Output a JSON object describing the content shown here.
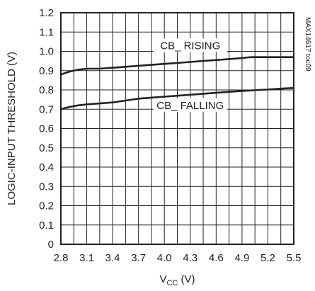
{
  "chart_data": {
    "type": "line",
    "title": "",
    "xlabel_main": "V",
    "xlabel_sub": "CC",
    "xlabel_unit": " (V)",
    "ylabel": "LOGIC-INPUT THRESHOLD (V)",
    "xlim": [
      2.8,
      5.5
    ],
    "ylim": [
      0,
      1.2
    ],
    "x_ticks": [
      "2.8",
      "3.1",
      "3.4",
      "3.7",
      "4.0",
      "4.3",
      "4.6",
      "4.9",
      "5.2",
      "5.5"
    ],
    "y_ticks": [
      "0",
      "0.1",
      "0.2",
      "0.3",
      "0.4",
      "0.5",
      "0.6",
      "0.7",
      "0.8",
      "0.9",
      "1.0",
      "1.1",
      "1.2"
    ],
    "grid": true,
    "watermark": "MAX14617 toc09",
    "series": [
      {
        "name": "CB_ RISING",
        "color": "#222222",
        "x": [
          2.8,
          2.9,
          3.0,
          3.1,
          3.25,
          3.4,
          3.55,
          3.7,
          3.85,
          4.0,
          4.15,
          4.3,
          4.45,
          4.6,
          4.75,
          4.9,
          5.0,
          5.1,
          5.2,
          5.3,
          5.4,
          5.5
        ],
        "y": [
          0.88,
          0.895,
          0.905,
          0.91,
          0.91,
          0.915,
          0.92,
          0.925,
          0.93,
          0.935,
          0.94,
          0.945,
          0.95,
          0.955,
          0.96,
          0.965,
          0.97,
          0.97,
          0.97,
          0.97,
          0.97,
          0.97
        ]
      },
      {
        "name": "CB_ FALLING",
        "color": "#222222",
        "x": [
          2.8,
          2.9,
          3.0,
          3.1,
          3.25,
          3.4,
          3.55,
          3.7,
          3.85,
          4.0,
          4.15,
          4.3,
          4.45,
          4.6,
          4.75,
          4.9,
          5.0,
          5.1,
          5.2,
          5.3,
          5.4,
          5.5
        ],
        "y": [
          0.7,
          0.712,
          0.72,
          0.725,
          0.73,
          0.735,
          0.745,
          0.755,
          0.76,
          0.765,
          0.77,
          0.775,
          0.78,
          0.785,
          0.79,
          0.795,
          0.797,
          0.8,
          0.802,
          0.805,
          0.808,
          0.81
        ]
      }
    ]
  }
}
